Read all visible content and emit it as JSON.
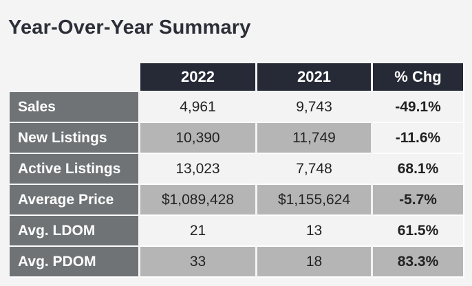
{
  "title": "Year-Over-Year Summary",
  "chart_data": {
    "type": "table",
    "title": "Year-Over-Year Summary",
    "columns": [
      "2022",
      "2021",
      "% Chg"
    ],
    "rows": [
      {
        "label": "Sales",
        "values": [
          "4,961",
          "9,743",
          "-49.1%"
        ]
      },
      {
        "label": "New Listings",
        "values": [
          "10,390",
          "11,749",
          "-11.6%"
        ]
      },
      {
        "label": "Active Listings",
        "values": [
          "13,023",
          "7,748",
          "68.1%"
        ]
      },
      {
        "label": "Average Price",
        "values": [
          "$1,089,428",
          "$1,155,624",
          "-5.7%"
        ]
      },
      {
        "label": "Avg. LDOM",
        "values": [
          "21",
          "13",
          "61.5%"
        ]
      },
      {
        "label": "Avg. PDOM",
        "values": [
          "33",
          "18",
          "83.3%"
        ]
      }
    ]
  },
  "colors": {
    "header_bg": "#262a36",
    "row_label_bg": "#6f7376",
    "light_row_bg": "#f3f3f3",
    "dark_row_bg": "#b5b5b5"
  }
}
